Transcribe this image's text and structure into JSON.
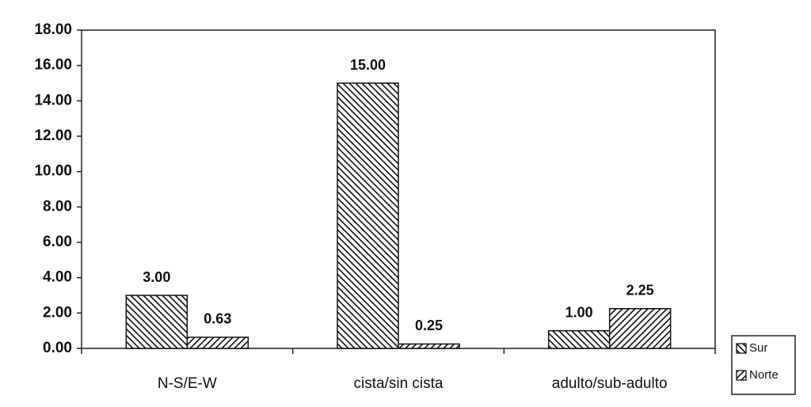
{
  "chart_data": {
    "type": "bar",
    "categories": [
      "N-S/E-W",
      "cista/sin cista",
      "adulto/sub-adulto"
    ],
    "series": [
      {
        "name": "Sur",
        "color": "#111111",
        "hatch": "backslash",
        "values": [
          3,
          15,
          1
        ],
        "value_labels": [
          "3.00",
          "15.00",
          "1.00"
        ]
      },
      {
        "name": "Norte",
        "color": "#111111",
        "hatch": "slash",
        "values": [
          0.63,
          0.25,
          2.25
        ],
        "value_labels": [
          "0.63",
          "0.25",
          "2.25"
        ]
      }
    ],
    "ylim": [
      0,
      18
    ],
    "yticks": [
      {
        "value": 0,
        "label": "0.00"
      },
      {
        "value": 2,
        "label": "2.00"
      },
      {
        "value": 4,
        "label": "4.00"
      },
      {
        "value": 6,
        "label": "6.00"
      },
      {
        "value": 8,
        "label": "8.00"
      },
      {
        "value": 10,
        "label": "10.00"
      },
      {
        "value": 12,
        "label": "12.00"
      },
      {
        "value": 14,
        "label": "14.00"
      },
      {
        "value": 16,
        "label": "16.00"
      },
      {
        "value": 18,
        "label": "18.00"
      }
    ],
    "grid": false,
    "legend": "lower right"
  }
}
